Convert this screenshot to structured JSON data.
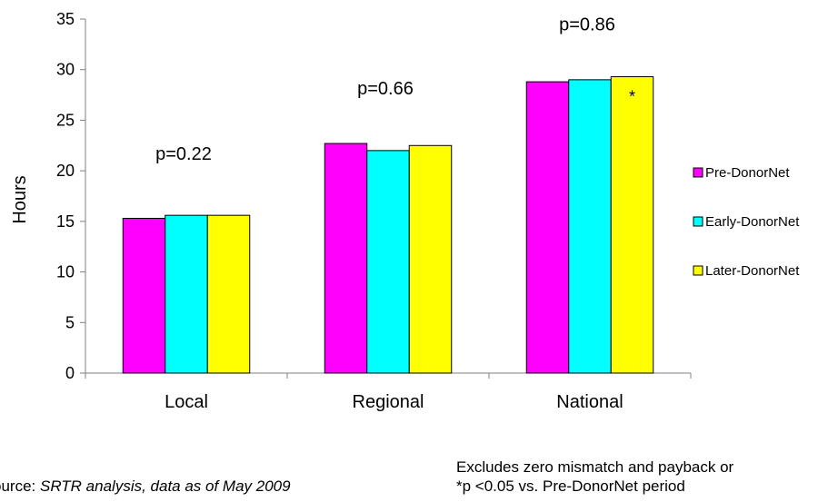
{
  "chart_data": {
    "type": "bar",
    "title": "",
    "xlabel": "",
    "ylabel": "Hours",
    "ylim": [
      0,
      35
    ],
    "yticks": [
      0,
      5,
      10,
      15,
      20,
      25,
      30,
      35
    ],
    "categories": [
      "Local",
      "Regional",
      "National"
    ],
    "series": [
      {
        "name": "Pre-DonorNet",
        "color": "#ff00ff",
        "values": [
          15.3,
          22.7,
          28.8
        ]
      },
      {
        "name": "Early-DonorNet",
        "color": "#00ffff",
        "values": [
          15.6,
          22.0,
          29.0
        ]
      },
      {
        "name": "Later-DonorNet",
        "color": "#ffff00",
        "values": [
          15.6,
          22.5,
          29.3
        ]
      }
    ],
    "p_values": [
      "p=0.22",
      "p=0.66",
      "p=0.86"
    ],
    "p_value_heights": [
      21.7,
      28.2,
      34.5
    ],
    "significance_marker": {
      "text": "*",
      "category_index": 2,
      "series_index": 2
    },
    "legend_position": "right",
    "grid": false
  },
  "notes": {
    "source_prefix": "ource: ",
    "source_detail": "SRTR analysis, data as of May 2009",
    "excludes": "Excludes zero mismatch and payback or",
    "significance": "*p <0.05 vs. Pre-DonorNet period"
  }
}
